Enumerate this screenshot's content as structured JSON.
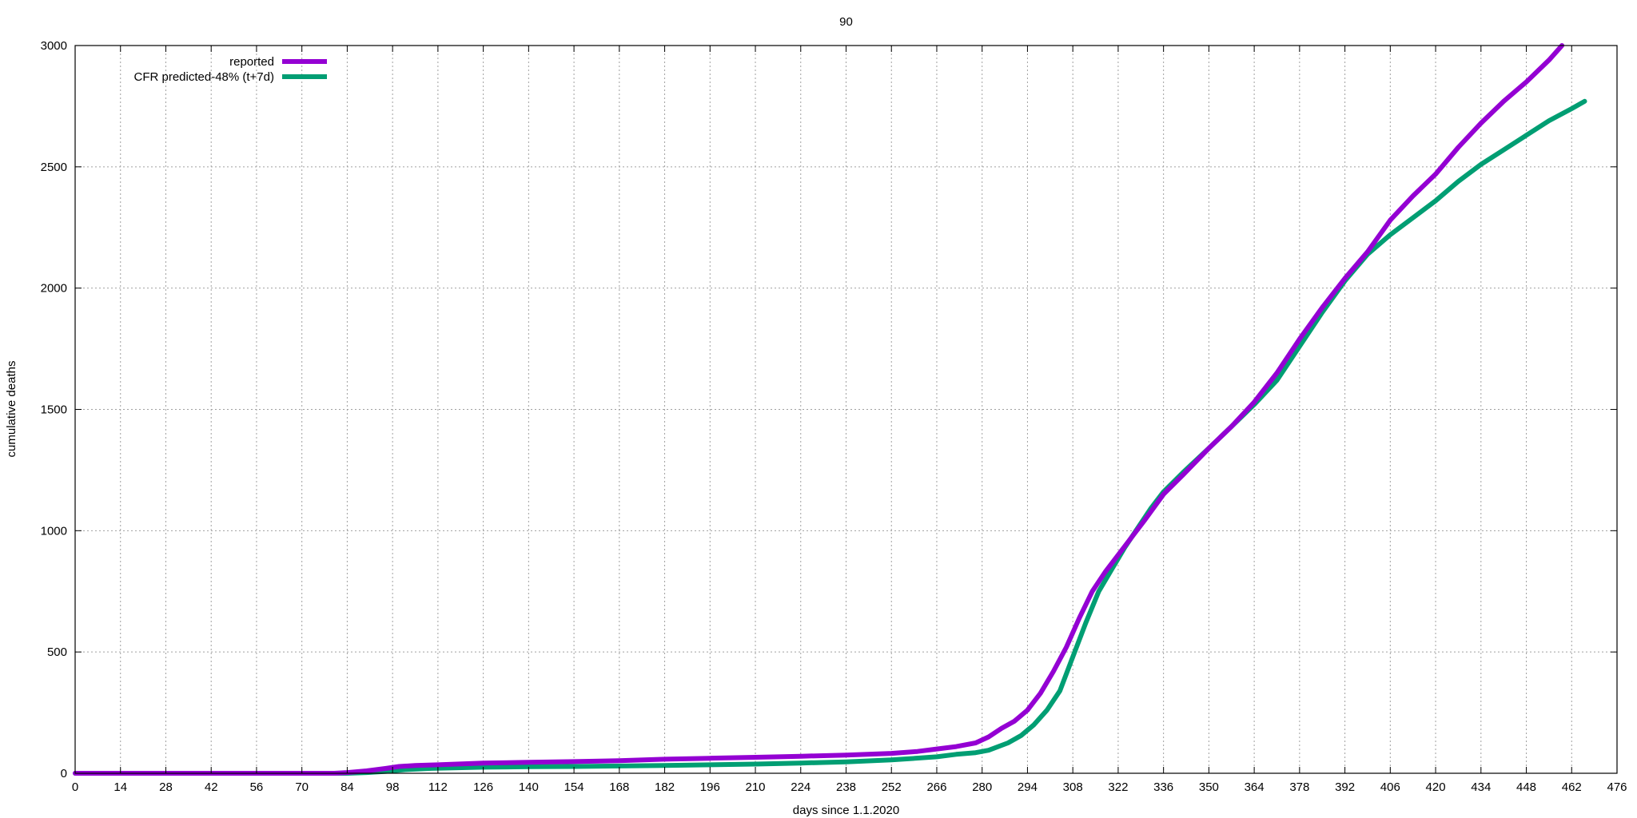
{
  "chart_data": {
    "type": "line",
    "title": "90",
    "xlabel": "days since 1.1.2020",
    "ylabel": "cumulative deaths",
    "xlim": [
      0,
      476
    ],
    "ylim": [
      0,
      3000
    ],
    "xticks": [
      0,
      14,
      28,
      42,
      56,
      70,
      84,
      98,
      112,
      126,
      140,
      154,
      168,
      182,
      196,
      210,
      224,
      238,
      252,
      266,
      280,
      294,
      308,
      322,
      336,
      350,
      364,
      378,
      392,
      406,
      420,
      434,
      448,
      462,
      476
    ],
    "yticks": [
      0,
      500,
      1000,
      1500,
      2000,
      2500,
      3000
    ],
    "grid": true,
    "legend_position": "top-left",
    "series": [
      {
        "name": "reported",
        "color": "#9400d3",
        "x": [
          0,
          80,
          84,
          90,
          96,
          100,
          105,
          112,
          126,
          140,
          154,
          168,
          182,
          196,
          210,
          224,
          238,
          252,
          260,
          266,
          272,
          278,
          282,
          286,
          290,
          294,
          298,
          302,
          306,
          310,
          314,
          318,
          322,
          326,
          330,
          336,
          342,
          350,
          357,
          364,
          371,
          378,
          385,
          392,
          399,
          406,
          413,
          420,
          427,
          434,
          441,
          448,
          455,
          459
        ],
        "values": [
          0,
          0,
          3,
          10,
          20,
          28,
          32,
          35,
          42,
          45,
          48,
          52,
          58,
          62,
          66,
          70,
          75,
          82,
          90,
          100,
          110,
          125,
          150,
          185,
          215,
          260,
          330,
          420,
          520,
          640,
          750,
          830,
          900,
          970,
          1040,
          1150,
          1230,
          1340,
          1430,
          1530,
          1650,
          1790,
          1920,
          2040,
          2150,
          2280,
          2380,
          2470,
          2580,
          2680,
          2770,
          2850,
          2940,
          3000
        ]
      },
      {
        "name": "CFR predicted-48% (t+7d)",
        "color": "#009e73",
        "x": [
          0,
          84,
          90,
          96,
          102,
          110,
          126,
          140,
          154,
          168,
          182,
          196,
          210,
          224,
          238,
          252,
          266,
          272,
          278,
          282,
          288,
          292,
          296,
          300,
          304,
          308,
          312,
          316,
          320,
          324,
          328,
          332,
          336,
          342,
          350,
          357,
          364,
          371,
          378,
          385,
          392,
          399,
          406,
          413,
          420,
          427,
          434,
          441,
          448,
          455,
          462,
          466
        ],
        "values": [
          0,
          0,
          3,
          8,
          15,
          20,
          25,
          27,
          28,
          30,
          32,
          35,
          38,
          42,
          47,
          55,
          68,
          78,
          85,
          95,
          125,
          155,
          200,
          260,
          340,
          480,
          620,
          750,
          840,
          930,
          1010,
          1090,
          1160,
          1240,
          1340,
          1430,
          1520,
          1620,
          1760,
          1900,
          2030,
          2140,
          2220,
          2290,
          2360,
          2440,
          2510,
          2570,
          2630,
          2690,
          2740,
          2770
        ]
      }
    ]
  }
}
